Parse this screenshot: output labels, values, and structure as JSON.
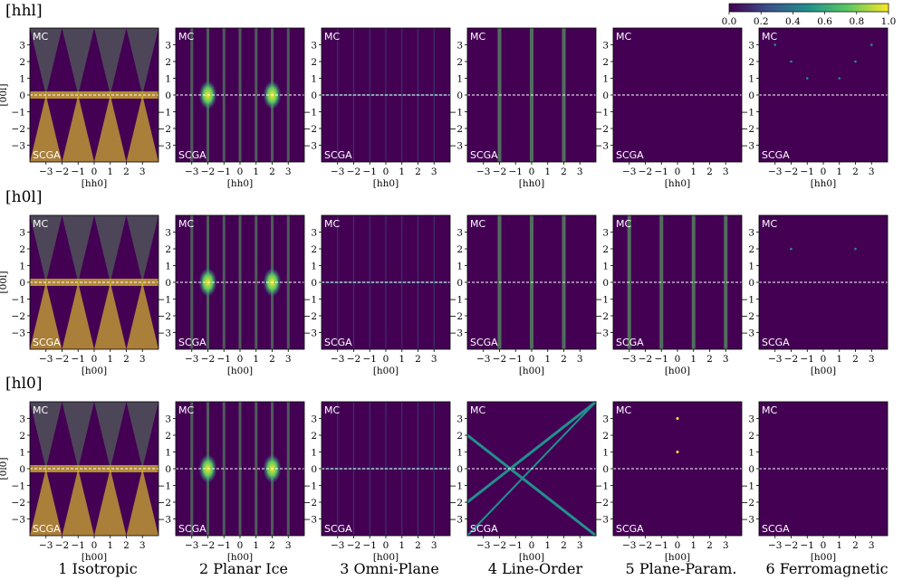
{
  "rows": [
    {
      "label": "[hhl]",
      "xlabel": "[hh0]",
      "ylabel": "[00l]"
    },
    {
      "label": "[h0l]",
      "xlabel": "[h00]",
      "ylabel": "[00l]"
    },
    {
      "label": "[hl0]",
      "xlabel": "[h00]",
      "ylabel": "[0l0]"
    }
  ],
  "columns": [
    {
      "title": "1 Isotropic"
    },
    {
      "title": "2 Planar Ice"
    },
    {
      "title": "3 Omni-Plane"
    },
    {
      "title": "4 Line-Order"
    },
    {
      "title": "5 Plane-Param."
    },
    {
      "title": "6 Ferromagnetic"
    }
  ],
  "panel_labels": {
    "top": "MC",
    "bottom": "SCGA"
  },
  "colorbar": {
    "ticks": [
      "0.0",
      "0.2",
      "0.4",
      "0.6",
      "0.8",
      "1.0"
    ],
    "colors": [
      "#440154",
      "#3b528b",
      "#21918c",
      "#5ec962",
      "#fde725"
    ]
  },
  "chart_data": {
    "type": "heatmap",
    "colormap": "viridis",
    "value_range": [
      0.0,
      1.0
    ],
    "x_ticks": [
      "−3",
      "−2",
      "−1",
      "0",
      "1",
      "2",
      "3"
    ],
    "y_ticks": [
      "3",
      "2",
      "1",
      "0",
      "−1",
      "−2",
      "−3"
    ],
    "xlim": [
      -4,
      4
    ],
    "ylim": [
      -4,
      4
    ],
    "divider": "dashed white line at l = 0 separating MC (top half) from SCGA (bottom half)",
    "background_color": "#440154"
  }
}
